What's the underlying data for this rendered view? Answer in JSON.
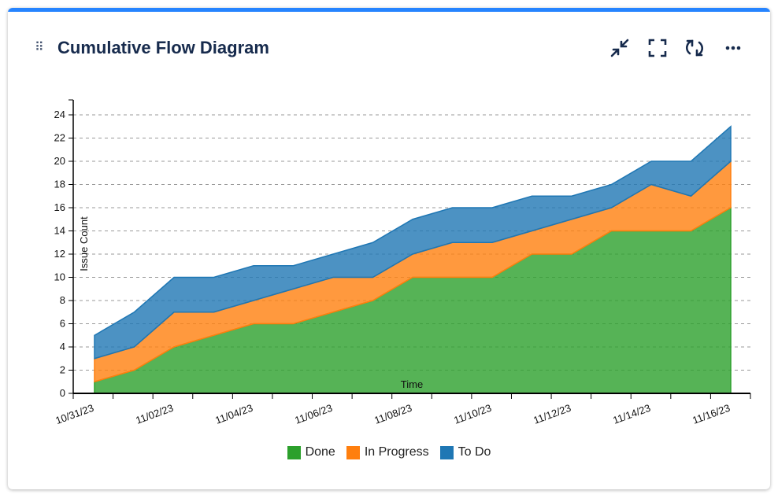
{
  "header": {
    "title": "Cumulative Flow Diagram",
    "actions": [
      "minimize",
      "fullscreen",
      "refresh",
      "more"
    ]
  },
  "chart_data": {
    "type": "area",
    "title": "Cumulative Flow Diagram",
    "xlabel": "Time",
    "ylabel": "Issue Count",
    "ylim": [
      0,
      25
    ],
    "yticks": [
      0,
      2,
      4,
      6,
      8,
      10,
      12,
      14,
      16,
      18,
      20,
      22,
      24
    ],
    "x": [
      "10/31/23",
      "11/01/23",
      "11/02/23",
      "11/03/23",
      "11/04/23",
      "11/05/23",
      "11/06/23",
      "11/07/23",
      "11/08/23",
      "11/09/23",
      "11/10/23",
      "11/11/23",
      "11/12/23",
      "11/13/23",
      "11/14/23",
      "11/15/23",
      "11/16/23"
    ],
    "xtick_labels": [
      "10/31/23",
      "11/02/23",
      "11/04/23",
      "11/06/23",
      "11/08/23",
      "11/10/23",
      "11/12/23",
      "11/14/23",
      "11/16/23"
    ],
    "stacked": true,
    "series": [
      {
        "name": "Done",
        "color": "#2ca02c",
        "values": [
          1,
          2,
          4,
          5,
          6,
          6,
          7,
          8,
          10,
          10,
          10,
          12,
          12,
          14,
          14,
          14,
          16
        ]
      },
      {
        "name": "In Progress",
        "color": "#ff7f0e",
        "values": [
          2,
          2,
          3,
          2,
          2,
          3,
          3,
          2,
          2,
          3,
          3,
          2,
          3,
          2,
          4,
          3,
          4
        ]
      },
      {
        "name": "To Do",
        "color": "#1f77b4",
        "values": [
          2,
          3,
          3,
          3,
          3,
          2,
          2,
          3,
          3,
          3,
          3,
          3,
          2,
          2,
          2,
          3,
          3
        ]
      }
    ],
    "grid": true,
    "legend": "bottom"
  }
}
